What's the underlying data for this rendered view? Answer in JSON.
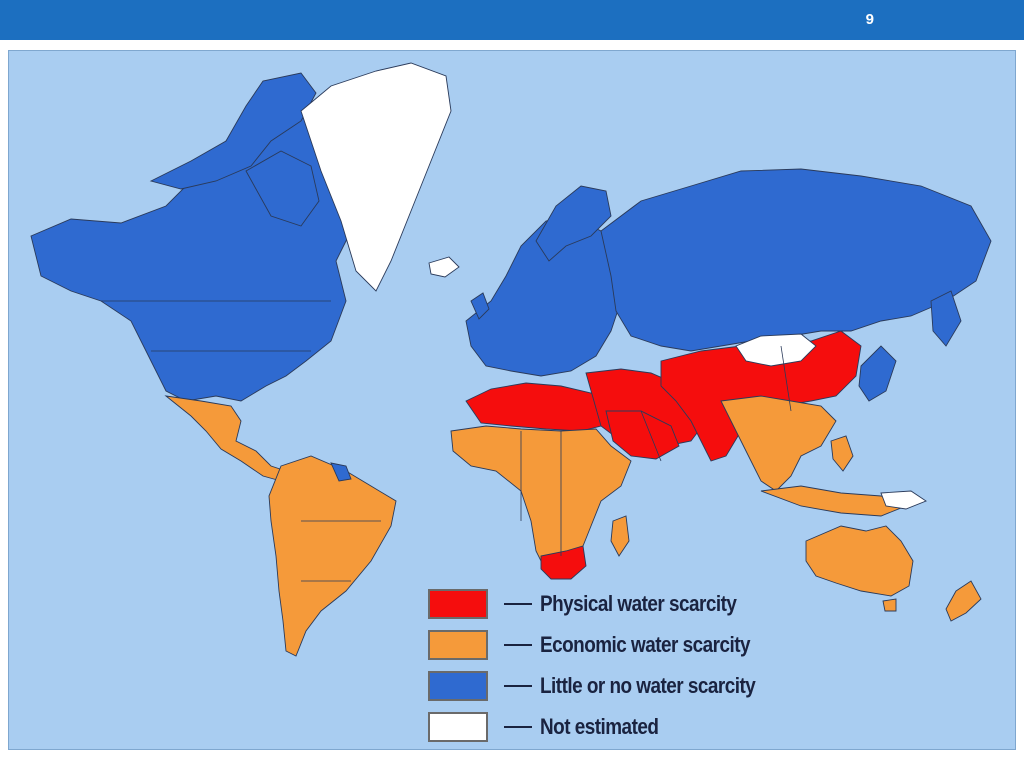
{
  "slide": {
    "page_number": "9"
  },
  "map": {
    "ocean_color": "#a9cdf1",
    "border_color": "#2a3a5a",
    "categories": {
      "physical": {
        "color": "#f50d0d"
      },
      "economic": {
        "color": "#f59a3a"
      },
      "little": {
        "color": "#2f6ad0"
      },
      "not_estimated": {
        "color": "#ffffff"
      }
    }
  },
  "legend": {
    "items": [
      {
        "key": "physical",
        "label": "Physical water scarcity",
        "color": "#f50d0d"
      },
      {
        "key": "economic",
        "label": "Economic water scarcity",
        "color": "#f59a3a"
      },
      {
        "key": "little",
        "label": "Little or no water scarcity",
        "color": "#2f6ad0"
      },
      {
        "key": "not_estimated",
        "label": "Not estimated",
        "color": "#ffffff"
      }
    ]
  }
}
